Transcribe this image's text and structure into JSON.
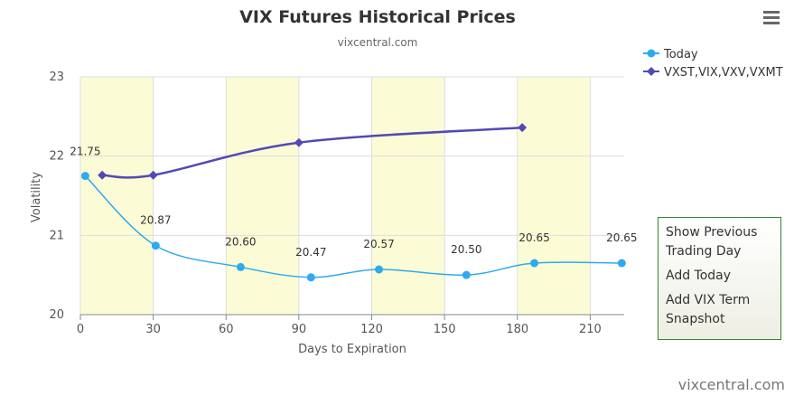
{
  "chart_data": {
    "type": "line",
    "title": "VIX Futures Historical Prices",
    "subtitle": "vixcentral.com",
    "x_label": "Days to Expiration",
    "y_label": "Volatility",
    "xlim": [
      0,
      224
    ],
    "xticks": [
      0,
      30,
      60,
      90,
      120,
      150,
      180,
      210
    ],
    "ylim": [
      20,
      23
    ],
    "yticks": [
      20,
      21,
      22,
      23
    ],
    "grid": true,
    "plot_bands": [
      [
        0,
        30
      ],
      [
        60,
        90
      ],
      [
        120,
        150
      ],
      [
        180,
        210
      ]
    ],
    "band_color": "#fbfcd6",
    "legend": "top-right",
    "series": [
      {
        "name": "Today",
        "color": "#2eaaf0",
        "marker": "circle",
        "x": [
          2,
          31,
          66,
          95,
          123,
          159,
          187,
          223
        ],
        "values": [
          21.75,
          20.87,
          20.6,
          20.47,
          20.57,
          20.5,
          20.65,
          20.65
        ],
        "value_labels": [
          "21.75",
          "20.87",
          "20.60",
          "20.47",
          "20.57",
          "20.50",
          "20.65",
          "20.65"
        ]
      },
      {
        "name": "VXST,VIX,VXV,VXMT",
        "color": "#5249b5",
        "marker": "diamond",
        "x": [
          9,
          30,
          90,
          182
        ],
        "values": [
          21.76,
          21.76,
          22.17,
          22.36
        ]
      }
    ]
  },
  "menu": [
    "Show Previous Trading Day",
    "Add Today",
    "Add VIX Term Snapshot"
  ],
  "credit": "vixcentral.com"
}
